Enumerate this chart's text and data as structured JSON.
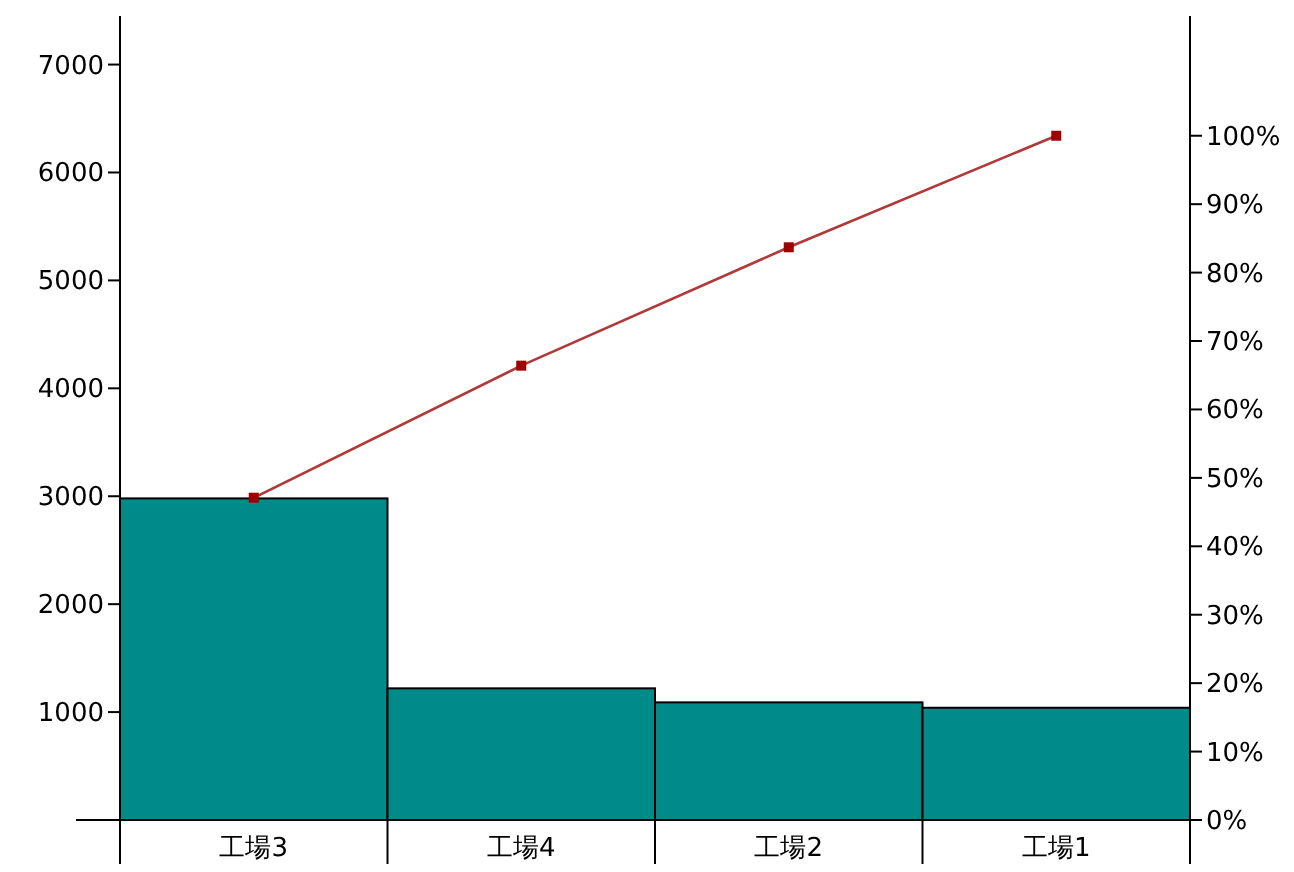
{
  "chart_data": {
    "type": "bar",
    "categories": [
      "工場3",
      "工場4",
      "工場2",
      "工場1"
    ],
    "series": [
      {
        "color": "#008b8b",
        "values": [
          2980,
          1220,
          1090,
          1040
        ]
      },
      {
        "type": "line",
        "axis": "y2",
        "color": "#b03a3a",
        "marker": "square",
        "values": [
          47.1,
          66.4,
          83.7,
          100
        ]
      }
    ],
    "ylim": [
      0,
      7450
    ],
    "yticks": [
      {
        "value": 0,
        "label": null
      },
      1000,
      2000,
      3000,
      4000,
      5000,
      6000,
      7000
    ],
    "y2lim": [
      0,
      117.5
    ],
    "y2ticks": [
      {
        "value": 0,
        "label": "0%"
      },
      {
        "value": 10,
        "label": "10%"
      },
      {
        "value": 20,
        "label": "20%"
      },
      {
        "value": 30,
        "label": "30%"
      },
      {
        "value": 40,
        "label": "40%"
      },
      {
        "value": 50,
        "label": "50%"
      },
      {
        "value": 60,
        "label": "60%"
      },
      {
        "value": 70,
        "label": "70%"
      },
      {
        "value": 80,
        "label": "80%"
      },
      {
        "value": 90,
        "label": "90%"
      },
      {
        "value": 100,
        "label": "100%"
      }
    ]
  }
}
